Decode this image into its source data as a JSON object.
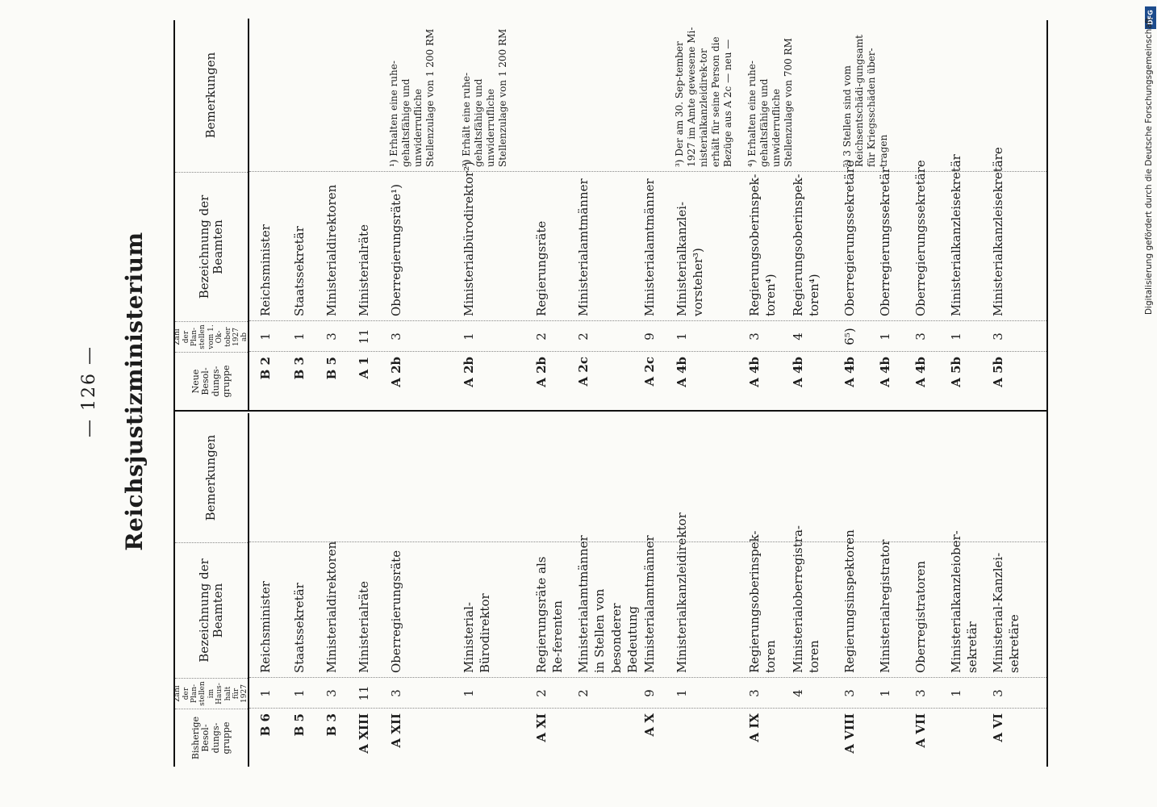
{
  "page_number": "— 126 —",
  "title": "Reichsjustizministerium",
  "headers_left": {
    "old_group": "Bisherige Besol-dungs-gruppe",
    "count_1927": "Zahl der Plan-stellen im Haus-halt für 1927",
    "designation": "Bezeichnung der Beamten",
    "remarks": "Bemerkungen"
  },
  "headers_right": {
    "new_group": "Neue Besol-dungs-gruppe",
    "count_new": "Zahl der Plan-stellen vom 1. Ok-tober 1927 ab",
    "designation": "Bezeichnung der Beamten",
    "remarks": "Bemerkungen"
  },
  "left_rows": [
    {
      "grade": "B 6",
      "count": "1",
      "title": "Reichsminister"
    },
    {
      "grade": "B 5",
      "count": "1",
      "title": "Staatssekretär"
    },
    {
      "grade": "B 3",
      "count": "3",
      "title": "Ministerialdirektoren"
    },
    {
      "grade": "A XIII",
      "count": "11",
      "title": "Ministerialräte"
    },
    {
      "grade": "A XII",
      "count": "3",
      "title": "Oberregierungsräte"
    },
    {
      "grade": "",
      "count": "1",
      "title": "Ministerial-Bürodirektor"
    },
    {
      "grade": "A XI",
      "count": "2",
      "title": "Regierungsräte als Re-ferenten"
    },
    {
      "grade": "",
      "count": "2",
      "title": "Ministerialamtmänner in Stellen von besonderer Bedeutung"
    },
    {
      "grade": "A X",
      "count": "9",
      "title": "Ministerialamtmänner"
    },
    {
      "grade": "",
      "count": "1",
      "title": "Ministerialkanzleidirektor"
    },
    {
      "grade": "A IX",
      "count": "3",
      "title": "Regierungsoberinspek-toren"
    },
    {
      "grade": "",
      "count": "4",
      "title": "Ministerialoberregistra-toren"
    },
    {
      "grade": "A VIII",
      "count": "3",
      "title": "Regierungsinspektoren"
    },
    {
      "grade": "",
      "count": "1",
      "title": "Ministerialregistrator"
    },
    {
      "grade": "A VII",
      "count": "3",
      "title": "Oberregistratoren"
    },
    {
      "grade": "",
      "count": "1",
      "title": "Ministerialkanzleiober-sekretär"
    },
    {
      "grade": "A VI",
      "count": "3",
      "title": "Ministerial-Kanzlei-sekretäre"
    }
  ],
  "right_rows": [
    {
      "grade": "B 2",
      "count": "1",
      "title": "Reichsminister",
      "remark": ""
    },
    {
      "grade": "B 3",
      "count": "1",
      "title": "Staatssekretär",
      "remark": ""
    },
    {
      "grade": "B 5",
      "count": "3",
      "title": "Ministerialdirektoren",
      "remark": ""
    },
    {
      "grade": "A 1",
      "count": "11",
      "title": "Ministerialräte",
      "remark": ""
    },
    {
      "grade": "A 2b",
      "count": "3",
      "title": "Oberregierungsräte¹)",
      "remark": "¹) Erhalten eine ruhe-gehaltsfähige und unwiderrufliche Stellenzulage von 1 200 RM"
    },
    {
      "grade": "A 2b",
      "count": "1",
      "title": "Ministerialbürodirektor²)",
      "remark": "²) Erhält eine ruhe-gehaltsfähige und unwiderrufliche Stellenzulage von 1 200 RM"
    },
    {
      "grade": "A 2b",
      "count": "2",
      "title": "Regierungsräte",
      "remark": ""
    },
    {
      "grade": "A 2c",
      "count": "2",
      "title": "Ministerialamtmänner",
      "remark": ""
    },
    {
      "grade": "A 2c",
      "count": "9",
      "title": "Ministerialamtmänner",
      "remark": ""
    },
    {
      "grade": "A 4b",
      "count": "1",
      "title": "Ministerialkanzlei-vorsteher³)",
      "remark": "³) Der am 30. Sep-tember 1927 im Amte gewesene Mi-nisterialkanzleidirek-tor erhält für seine Person die Bezüge aus A 2c — neu —"
    },
    {
      "grade": "A 4b",
      "count": "3",
      "title": "Regierungsoberinspek-toren⁴)",
      "remark": "⁴) Erhalten eine ruhe-gehaltsfähige und unwiderrufliche Stellenzulage von 700 RM"
    },
    {
      "grade": "A 4b",
      "count": "4",
      "title": "Regierungsoberinspek-toren⁴)",
      "remark": ""
    },
    {
      "grade": "A 4b",
      "count": "6⁵)",
      "title": "Oberregierungssekretäre",
      "remark": "⁵) 3 Stellen sind vom Reichsentschädi-gungsamt für Kriegsschäden über-tragen"
    },
    {
      "grade": "A 4b",
      "count": "1",
      "title": "Oberregierungssekretär",
      "remark": ""
    },
    {
      "grade": "A 4b",
      "count": "3",
      "title": "Oberregierungssekretäre",
      "remark": ""
    },
    {
      "grade": "A 5b",
      "count": "1",
      "title": "Ministerialkanzleisekretär",
      "remark": ""
    },
    {
      "grade": "A 5b",
      "count": "3",
      "title": "Ministerialkanzleisekretäre",
      "remark": ""
    }
  ],
  "footer_note": "Digitalisierung gefördert durch die Deutsche Forschungsgemeinschaft",
  "logo_text": "DFG"
}
